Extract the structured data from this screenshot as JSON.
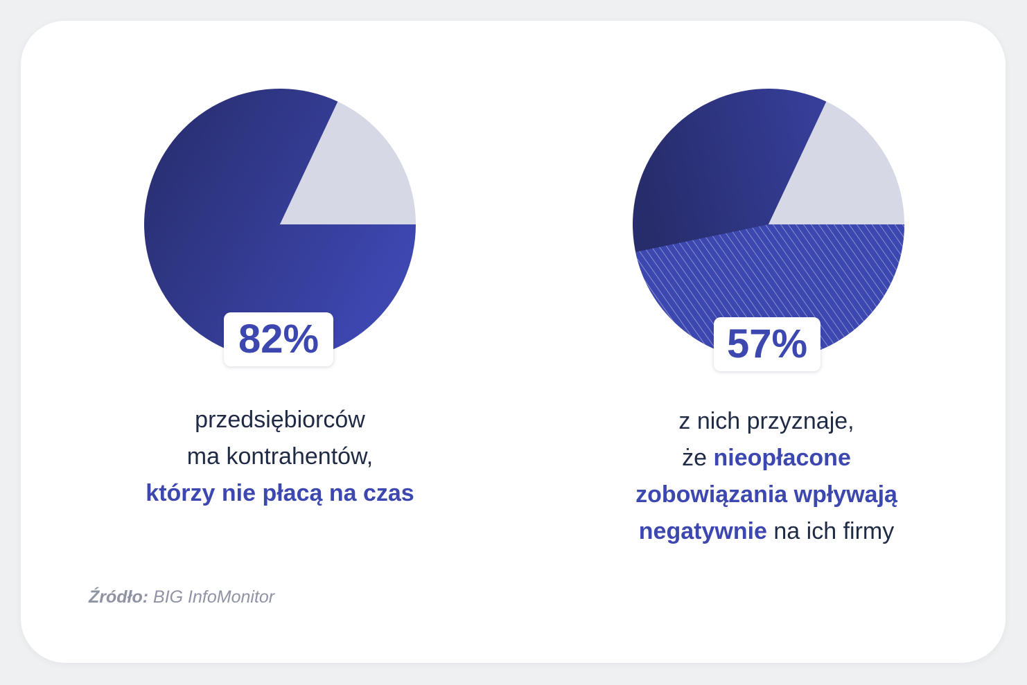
{
  "chart_data": [
    {
      "type": "pie",
      "values": [
        82,
        18
      ],
      "value_label": "82%",
      "caption": {
        "line1": "przedsiębiorców",
        "line2": "ma kontrahentów,",
        "line3_highlight": "którzy nie płacą na czas"
      }
    },
    {
      "type": "pie",
      "values": [
        82,
        18
      ],
      "highlight_subset": 57,
      "value_label": "57%",
      "caption": {
        "line1": "z nich przyznaje,",
        "line2_plain": "że ",
        "line2_highlight": "nieopłacone",
        "line3_highlight": "zobowiązania wpływają",
        "line4_highlight": "negatywnie",
        "line4_plain": " na ich firmy"
      }
    }
  ],
  "source": {
    "label": "Źródło:",
    "value": " BIG InfoMonitor"
  },
  "colors": {
    "pie_dark": "#272c6a",
    "pie_main": "#3d47b0",
    "pie_light": "#d6d8e6",
    "highlight_text": "#3d47b0",
    "body_text": "#1f2a44",
    "source_text": "#8f93a3"
  }
}
